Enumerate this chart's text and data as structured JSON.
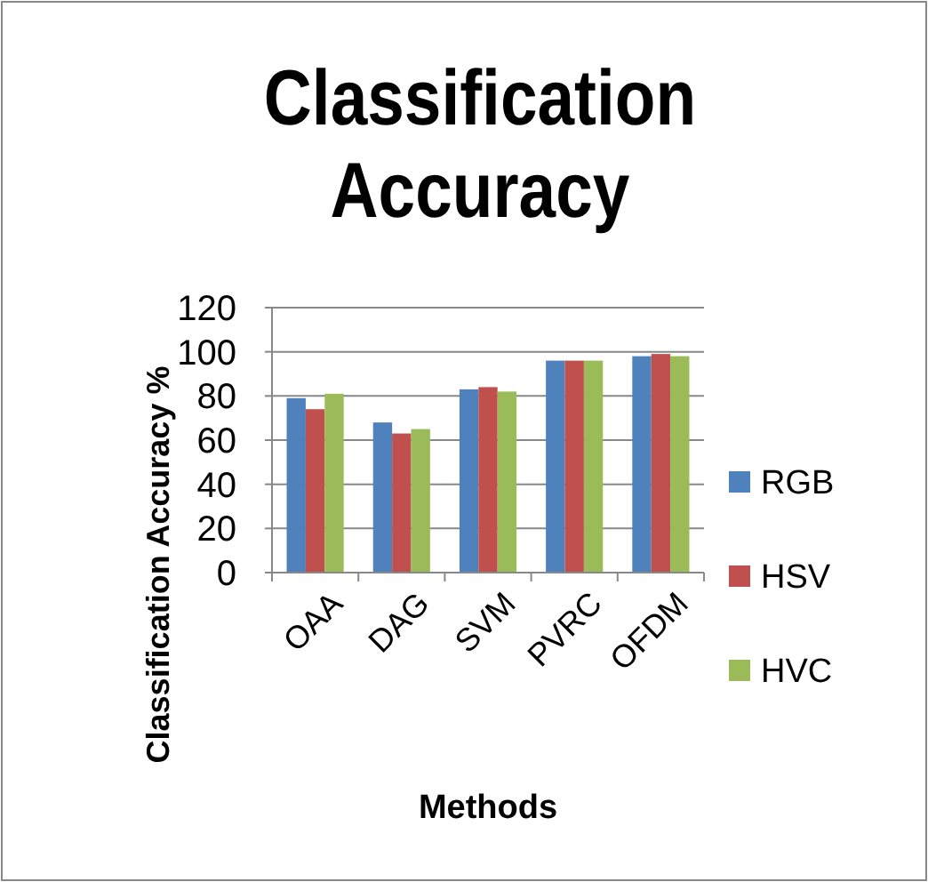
{
  "chart_data": {
    "type": "bar",
    "title": "Classification Accuracy",
    "xlabel": "Methods",
    "ylabel": "Classification Accuracy %",
    "categories": [
      "OAA",
      "DAG",
      "SVM",
      "PVRC",
      "OFDM"
    ],
    "series": [
      {
        "name": "RGB",
        "color": "#4f81bd",
        "values": [
          79,
          68,
          83,
          96,
          98
        ]
      },
      {
        "name": "HSV",
        "color": "#c0504d",
        "values": [
          74,
          63,
          84,
          96,
          99
        ]
      },
      {
        "name": "HVC",
        "color": "#9bbb59",
        "values": [
          81,
          65,
          82,
          96,
          98
        ]
      }
    ],
    "ylim": [
      0,
      120
    ],
    "yticks": [
      0,
      20,
      40,
      60,
      80,
      100,
      120
    ],
    "grid": "y",
    "legend": "right"
  }
}
